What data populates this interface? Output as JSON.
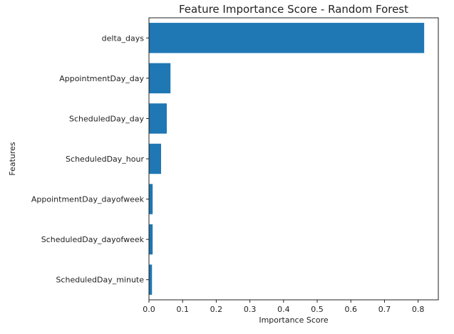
{
  "chart_data": {
    "type": "bar",
    "orientation": "horizontal",
    "title": "Feature Importance Score - Random Forest",
    "xlabel": "Importance Score",
    "ylabel": "Features",
    "categories": [
      "delta_days",
      "AppointmentDay_day",
      "ScheduledDay_day",
      "ScheduledDay_hour",
      "AppointmentDay_dayofweek",
      "ScheduledDay_dayofweek",
      "ScheduledDay_minute"
    ],
    "values": [
      0.818,
      0.064,
      0.053,
      0.036,
      0.011,
      0.011,
      0.009
    ],
    "xlim": [
      0.0,
      0.86
    ],
    "xticks": [
      0.0,
      0.1,
      0.2,
      0.3,
      0.4,
      0.5,
      0.6,
      0.7,
      0.8
    ],
    "xtick_labels": [
      "0.0",
      "0.1",
      "0.2",
      "0.3",
      "0.4",
      "0.5",
      "0.6",
      "0.7",
      "0.8"
    ],
    "grid": false,
    "legend": "none",
    "bar_color": "#1f77b4"
  }
}
